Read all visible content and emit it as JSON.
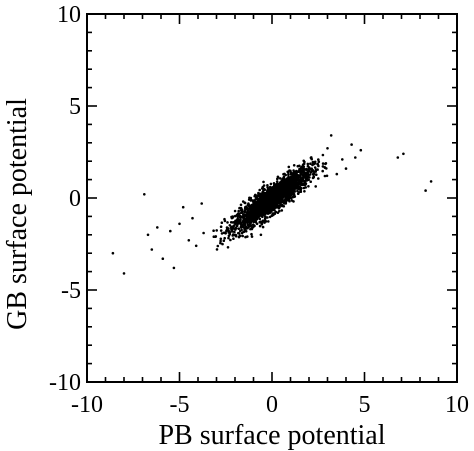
{
  "chart_data": {
    "type": "scatter",
    "xlabel": "PB surface potential",
    "ylabel": "GB surface potential",
    "xlim": [
      -10,
      10
    ],
    "ylim": [
      -10,
      10
    ],
    "x_ticks": [
      "-10",
      "-5",
      "0",
      "5",
      "10"
    ],
    "y_ticks": [
      "-10",
      "-5",
      "0",
      "5",
      "10"
    ],
    "grid": false,
    "legend": "none",
    "marker_color": "#000000",
    "cluster": {
      "description_of_distribution": "dense elongated cloud along y ≈ 0.7x",
      "x_range": [
        -3.5,
        3.0
      ],
      "y_range": [
        -2.8,
        3.0
      ],
      "approx_count": 2000
    },
    "series": [
      {
        "points": [
          [
            -8.6,
            -3.0
          ],
          [
            -8.0,
            -4.1
          ],
          [
            -6.9,
            0.2
          ],
          [
            -6.7,
            -2.0
          ],
          [
            -6.5,
            -2.8
          ],
          [
            -6.2,
            -1.6
          ],
          [
            -5.9,
            -3.3
          ],
          [
            -5.5,
            -1.8
          ],
          [
            -5.3,
            -3.8
          ],
          [
            -5.0,
            -1.4
          ],
          [
            -4.8,
            -0.5
          ],
          [
            -4.5,
            -2.3
          ],
          [
            -4.3,
            -1.1
          ],
          [
            -4.1,
            -2.6
          ],
          [
            -3.8,
            -0.3
          ],
          [
            -3.7,
            -1.9
          ],
          [
            3.0,
            2.7
          ],
          [
            3.2,
            3.4
          ],
          [
            3.5,
            1.3
          ],
          [
            3.8,
            2.1
          ],
          [
            4.0,
            1.6
          ],
          [
            4.3,
            2.9
          ],
          [
            4.5,
            2.2
          ],
          [
            4.8,
            2.6
          ],
          [
            6.8,
            2.2
          ],
          [
            7.1,
            2.4
          ],
          [
            8.3,
            0.4
          ],
          [
            8.6,
            0.9
          ]
        ]
      }
    ]
  }
}
